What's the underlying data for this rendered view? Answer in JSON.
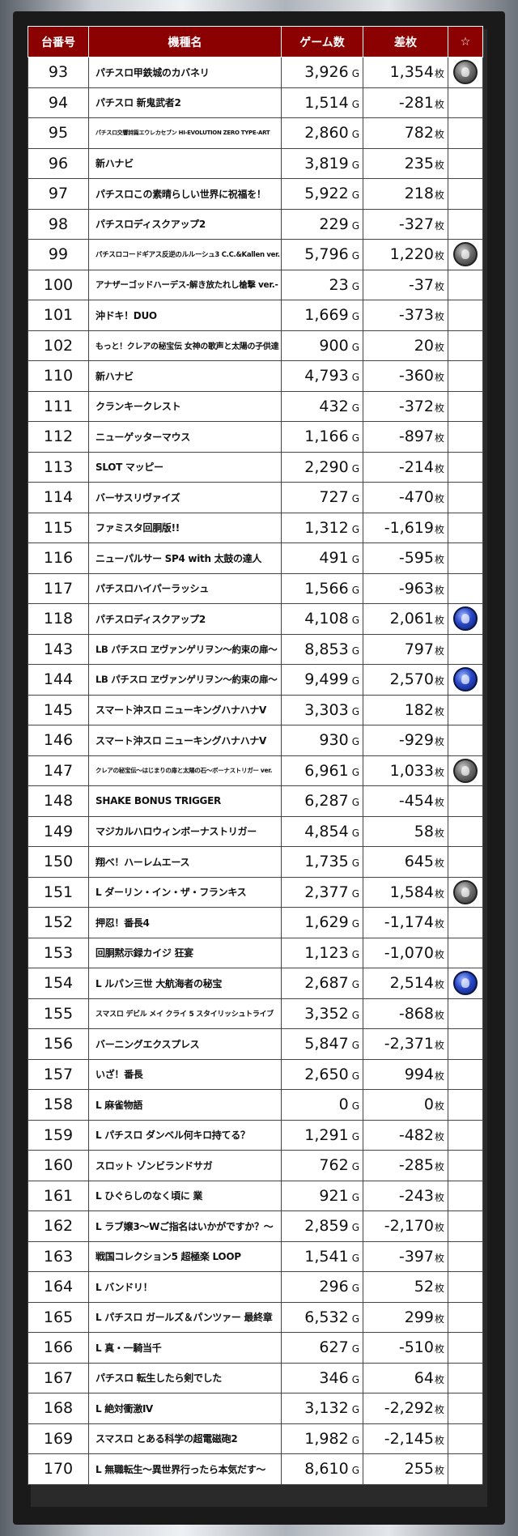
{
  "header": {
    "no": "台番号",
    "name": "機種名",
    "games": "ゲーム数",
    "diff": "差枚",
    "star": "☆"
  },
  "units": {
    "games": "G",
    "diff": "枚"
  },
  "rows": [
    {
      "no": "93",
      "name": "パチスロ甲鉄城のカバネリ",
      "games": "3,926",
      "diff": "1,354",
      "mark": "gray"
    },
    {
      "no": "94",
      "name": "パチスロ 新鬼武者2",
      "games": "1,514",
      "diff": "-281",
      "mark": ""
    },
    {
      "no": "95",
      "name": "パチスロ交響詩篇エウレカセブン HI-EVOLUTION ZERO TYPE-ART",
      "games": "2,860",
      "diff": "782",
      "mark": ""
    },
    {
      "no": "96",
      "name": "新ハナビ",
      "games": "3,819",
      "diff": "235",
      "mark": ""
    },
    {
      "no": "97",
      "name": "パチスロこの素晴らしい世界に祝福を！",
      "games": "5,922",
      "diff": "218",
      "mark": ""
    },
    {
      "no": "98",
      "name": "パチスロディスクアップ2",
      "games": "229",
      "diff": "-327",
      "mark": ""
    },
    {
      "no": "99",
      "name": "パチスロコードギアス反逆のルルーシュ3 C.C.&Kallen ver.",
      "games": "5,796",
      "diff": "1,220",
      "mark": "gray"
    },
    {
      "no": "100",
      "name": "アナザーゴッドハーデス-解き放たれし槍撃 ver.-",
      "games": "23",
      "diff": "-37",
      "mark": ""
    },
    {
      "no": "101",
      "name": "沖ドキ！DUO",
      "games": "1,669",
      "diff": "-373",
      "mark": ""
    },
    {
      "no": "102",
      "name": "もっと！クレアの秘宝伝 女神の歌声と太陽の子供達",
      "games": "900",
      "diff": "20",
      "mark": ""
    },
    {
      "no": "110",
      "name": "新ハナビ",
      "games": "4,793",
      "diff": "-360",
      "mark": ""
    },
    {
      "no": "111",
      "name": "クランキークレスト",
      "games": "432",
      "diff": "-372",
      "mark": ""
    },
    {
      "no": "112",
      "name": "ニューゲッターマウス",
      "games": "1,166",
      "diff": "-897",
      "mark": ""
    },
    {
      "no": "113",
      "name": "SLOT マッピー",
      "games": "2,290",
      "diff": "-214",
      "mark": ""
    },
    {
      "no": "114",
      "name": "バーサスリヴァイズ",
      "games": "727",
      "diff": "-470",
      "mark": ""
    },
    {
      "no": "115",
      "name": "ファミスタ回胴版!!",
      "games": "1,312",
      "diff": "-1,619",
      "mark": ""
    },
    {
      "no": "116",
      "name": "ニューパルサー SP4 with 太鼓の達人",
      "games": "491",
      "diff": "-595",
      "mark": ""
    },
    {
      "no": "117",
      "name": "パチスロハイパーラッシュ",
      "games": "1,566",
      "diff": "-963",
      "mark": ""
    },
    {
      "no": "118",
      "name": "パチスロディスクアップ2",
      "games": "4,108",
      "diff": "2,061",
      "mark": "blue"
    },
    {
      "no": "143",
      "name": "LB パチスロ ヱヴァンゲリヲン～約束の扉～",
      "games": "8,853",
      "diff": "797",
      "mark": ""
    },
    {
      "no": "144",
      "name": "LB パチスロ ヱヴァンゲリヲン～約束の扉～",
      "games": "9,499",
      "diff": "2,570",
      "mark": "blue"
    },
    {
      "no": "145",
      "name": "スマート沖スロ ニューキングハナハナV",
      "games": "3,303",
      "diff": "182",
      "mark": ""
    },
    {
      "no": "146",
      "name": "スマート沖スロ ニューキングハナハナV",
      "games": "930",
      "diff": "-929",
      "mark": ""
    },
    {
      "no": "147",
      "name": "クレアの秘宝伝～はじまりの扉と太陽の石～ボーナストリガー ver.",
      "games": "6,961",
      "diff": "1,033",
      "mark": "gray"
    },
    {
      "no": "148",
      "name": "SHAKE BONUS TRIGGER",
      "games": "6,287",
      "diff": "-454",
      "mark": ""
    },
    {
      "no": "149",
      "name": "マジカルハロウィンボーナストリガー",
      "games": "4,854",
      "diff": "58",
      "mark": ""
    },
    {
      "no": "150",
      "name": "翔べ！ハーレムエース",
      "games": "1,735",
      "diff": "645",
      "mark": ""
    },
    {
      "no": "151",
      "name": "L ダーリン・イン・ザ・フランキス",
      "games": "2,377",
      "diff": "1,584",
      "mark": "gray"
    },
    {
      "no": "152",
      "name": "押忍！番長4",
      "games": "1,629",
      "diff": "-1,174",
      "mark": ""
    },
    {
      "no": "153",
      "name": "回胴黙示録カイジ 狂宴",
      "games": "1,123",
      "diff": "-1,070",
      "mark": ""
    },
    {
      "no": "154",
      "name": "L ルパン三世 大航海者の秘宝",
      "games": "2,687",
      "diff": "2,514",
      "mark": "blue"
    },
    {
      "no": "155",
      "name": "スマスロ デビル メイ クライ 5 スタイリッシュトライブ",
      "games": "3,352",
      "diff": "-868",
      "mark": ""
    },
    {
      "no": "156",
      "name": "バーニングエクスプレス",
      "games": "5,847",
      "diff": "-2,371",
      "mark": ""
    },
    {
      "no": "157",
      "name": "いざ！番長",
      "games": "2,650",
      "diff": "994",
      "mark": ""
    },
    {
      "no": "158",
      "name": "L 麻雀物語",
      "games": "0",
      "diff": "0",
      "mark": ""
    },
    {
      "no": "159",
      "name": "L パチスロ ダンベル何キロ持てる？",
      "games": "1,291",
      "diff": "-482",
      "mark": ""
    },
    {
      "no": "160",
      "name": "スロット ゾンビランドサガ",
      "games": "762",
      "diff": "-285",
      "mark": ""
    },
    {
      "no": "161",
      "name": "L ひぐらしのなく頃に 業",
      "games": "921",
      "diff": "-243",
      "mark": ""
    },
    {
      "no": "162",
      "name": "L ラブ嬢3～Wご指名はいかがですか？～",
      "games": "2,859",
      "diff": "-2,170",
      "mark": ""
    },
    {
      "no": "163",
      "name": "戦国コレクション5 超極楽 LOOP",
      "games": "1,541",
      "diff": "-397",
      "mark": ""
    },
    {
      "no": "164",
      "name": "L バンドリ！",
      "games": "296",
      "diff": "52",
      "mark": ""
    },
    {
      "no": "165",
      "name": "L パチスロ ガールズ＆パンツァー 最終章",
      "games": "6,532",
      "diff": "299",
      "mark": ""
    },
    {
      "no": "166",
      "name": "L 真・一騎当千",
      "games": "627",
      "diff": "-510",
      "mark": ""
    },
    {
      "no": "167",
      "name": "パチスロ 転生したら剣でした",
      "games": "346",
      "diff": "64",
      "mark": ""
    },
    {
      "no": "168",
      "name": "L 絶対衝激Ⅳ",
      "games": "3,132",
      "diff": "-2,292",
      "mark": ""
    },
    {
      "no": "169",
      "name": "スマスロ とある科学の超電磁砲2",
      "games": "1,982",
      "diff": "-2,145",
      "mark": ""
    },
    {
      "no": "170",
      "name": "L 無職転生～異世界行ったら本気だす～",
      "games": "8,610",
      "diff": "255",
      "mark": ""
    }
  ],
  "mark_icons": {
    "gray": "gray-reel-badge-icon",
    "blue": "blue-reel-badge-icon"
  }
}
